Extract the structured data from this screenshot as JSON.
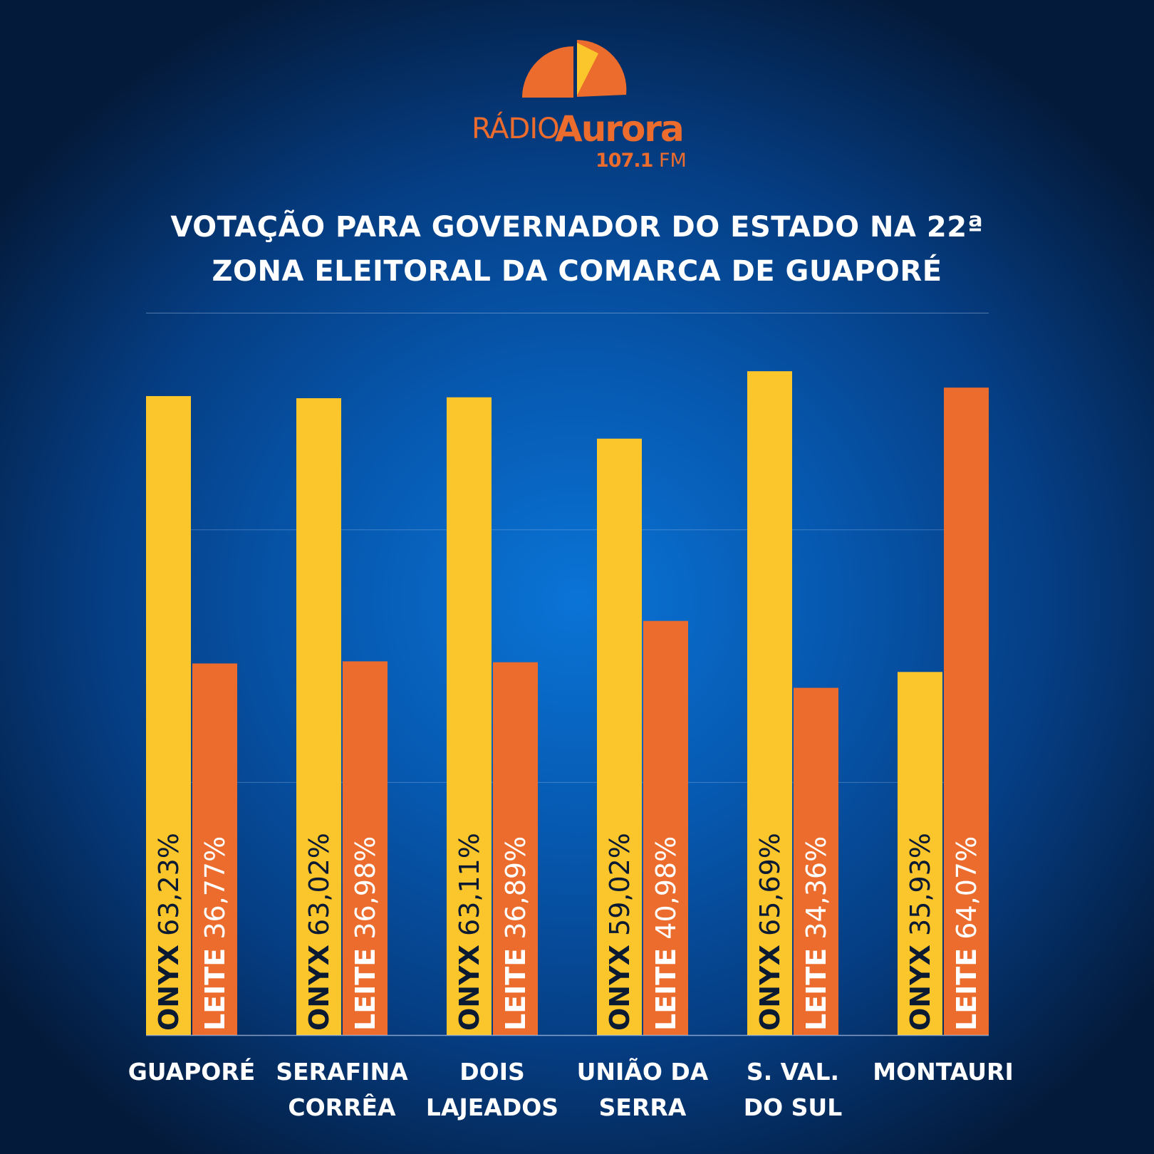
{
  "logo": {
    "radio": "RÁDIO",
    "aurora": "Aurora",
    "frequency": "107.1",
    "band": "FM"
  },
  "colors": {
    "onyx": "#fbc62b",
    "leite": "#ec6c2d",
    "onyx_text": "#0b1a33",
    "leite_text": "#ffffff"
  },
  "chart_data": {
    "type": "bar",
    "title_lines": [
      "VOTAÇÃO PARA GOVERNADOR DO ESTADO NA 22ª",
      "ZONA ELEITORAL DA COMARCA DE GUAPORÉ"
    ],
    "categories": [
      [
        "GUAPORÉ"
      ],
      [
        "SERAFINA",
        "CORRÊA"
      ],
      [
        "DOIS",
        "LAJEADOS"
      ],
      [
        "UNIÃO DA",
        "SERRA"
      ],
      [
        "S. VAL.",
        "DO SUL"
      ],
      [
        "MONTAURI"
      ]
    ],
    "series": [
      {
        "name": "ONYX",
        "values": [
          63.23,
          63.02,
          63.11,
          59.02,
          65.69,
          35.93
        ],
        "labels": [
          "63,23%",
          "63,02%",
          "63,11%",
          "59,02%",
          "65,69%",
          "35,93%"
        ]
      },
      {
        "name": "LEITE",
        "values": [
          36.77,
          36.98,
          36.89,
          40.98,
          34.36,
          64.07
        ],
        "labels": [
          "36,77%",
          "36,98%",
          "36,89%",
          "40,98%",
          "34,36%",
          "64,07%"
        ]
      }
    ],
    "ylim": [
      0,
      70
    ],
    "gridlines": [
      25,
      50
    ],
    "grid": true,
    "legend": "none"
  }
}
